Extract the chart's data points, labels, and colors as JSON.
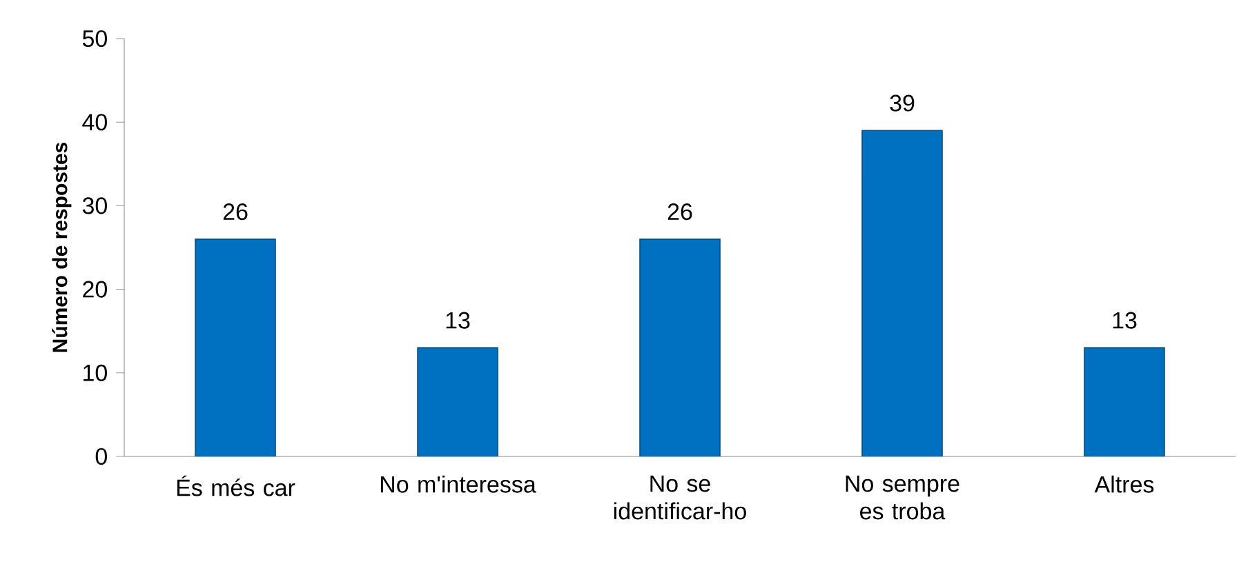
{
  "chart_data": {
    "type": "bar",
    "ylabel": "Número de respostes",
    "categories": [
      "És més car",
      "No m'interessa",
      "No se identificar-ho",
      "No sempre es troba",
      "Altres"
    ],
    "values": [
      26,
      13,
      26,
      39,
      13
    ],
    "color": "#0070c0",
    "ylim": [
      0,
      50
    ],
    "yticks": [
      0,
      10,
      20,
      30,
      40,
      50
    ],
    "grid": false,
    "data_labels": true
  }
}
